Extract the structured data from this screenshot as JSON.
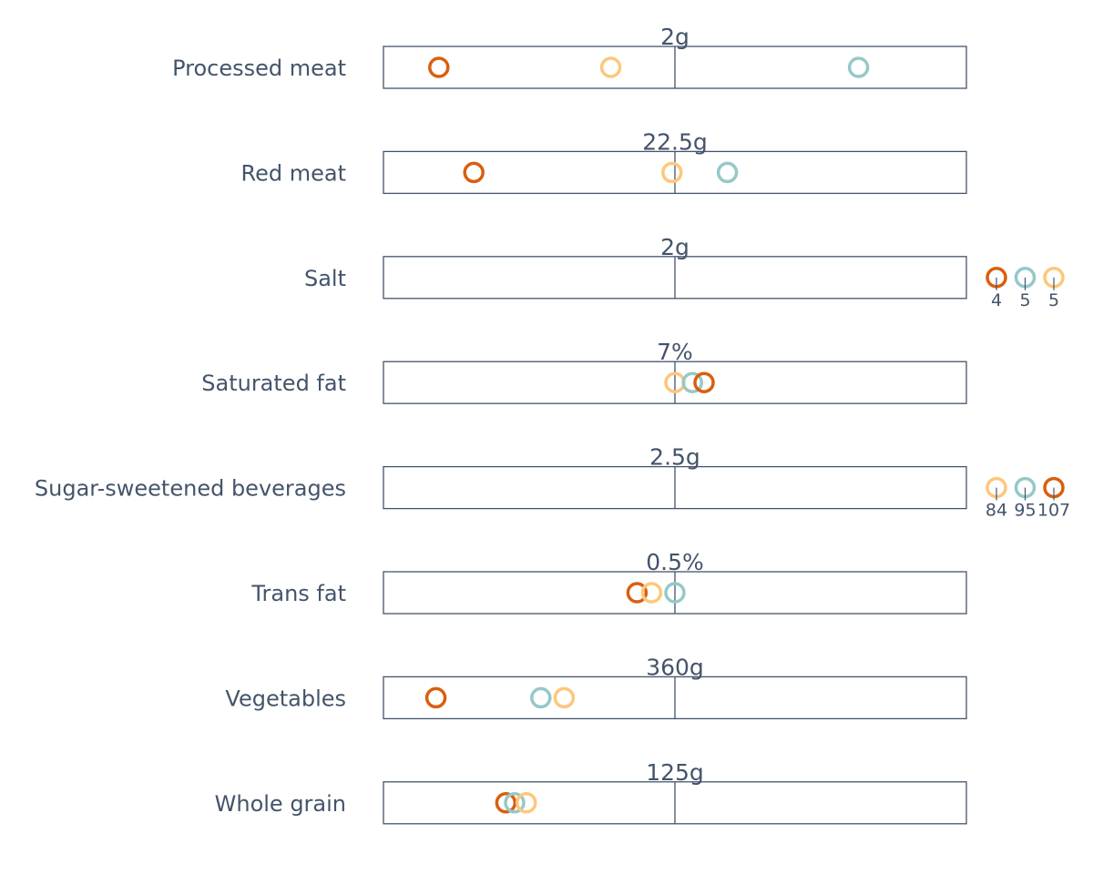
{
  "chart_data": {
    "type": "scatter",
    "colors": {
      "orange": "#d95f0e",
      "yellow": "#fdc77c",
      "teal": "#96c8c8"
    },
    "rows": [
      {
        "label": "Processed meat",
        "target": "2g",
        "points": [
          {
            "color": "orange",
            "value": 0.19
          },
          {
            "color": "yellow",
            "value": 0.78
          },
          {
            "color": "teal",
            "value": 1.63
          }
        ]
      },
      {
        "label": "Red meat",
        "target": "22.5g",
        "points": [
          {
            "color": "orange",
            "value": 0.31
          },
          {
            "color": "yellow",
            "value": 0.99
          },
          {
            "color": "teal",
            "value": 1.18
          }
        ]
      },
      {
        "label": "Salt",
        "target": "2g",
        "points": [],
        "outside": [
          {
            "color": "orange",
            "label": "4"
          },
          {
            "color": "teal",
            "label": "5"
          },
          {
            "color": "yellow",
            "label": "5"
          }
        ]
      },
      {
        "label": "Saturated fat",
        "target": "7%",
        "points": [
          {
            "color": "yellow",
            "value": 1.0
          },
          {
            "color": "teal",
            "value": 1.06
          },
          {
            "color": "orange",
            "value": 1.1
          }
        ]
      },
      {
        "label": "Sugar-sweetened beverages",
        "target": "2.5g",
        "points": [],
        "outside": [
          {
            "color": "yellow",
            "label": "84"
          },
          {
            "color": "teal",
            "label": "95"
          },
          {
            "color": "orange",
            "label": "107"
          }
        ]
      },
      {
        "label": "Trans fat",
        "target": "0.5%",
        "points": [
          {
            "color": "orange",
            "value": 0.87
          },
          {
            "color": "yellow",
            "value": 0.92
          },
          {
            "color": "teal",
            "value": 1.0
          }
        ]
      },
      {
        "label": "Vegetables",
        "target": "360g",
        "points": [
          {
            "color": "orange",
            "value": 0.18
          },
          {
            "color": "teal",
            "value": 0.54
          },
          {
            "color": "yellow",
            "value": 0.62
          }
        ]
      },
      {
        "label": "Whole grain",
        "target": "125g",
        "points": [
          {
            "color": "orange",
            "value": 0.42
          },
          {
            "color": "teal",
            "value": 0.45
          },
          {
            "color": "yellow",
            "value": 0.49
          }
        ]
      }
    ]
  }
}
